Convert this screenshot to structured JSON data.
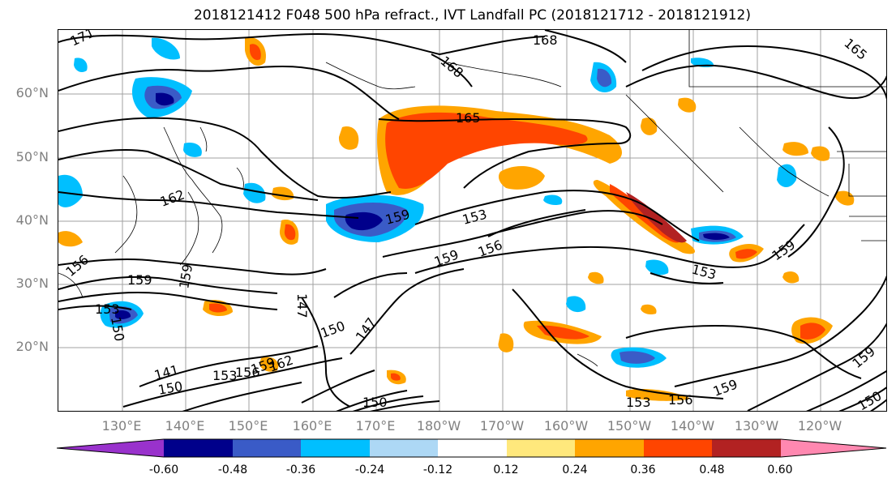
{
  "title": "2018121412 F048 500 hPa refract., IVT Landfall PC (2018121712 - 2018121912)",
  "lat_labels": [
    "60°N",
    "50°N",
    "40°N",
    "30°N",
    "20°N"
  ],
  "lon_labels": [
    "130°E",
    "140°E",
    "150°E",
    "160°E",
    "170°E",
    "180°W",
    "170°W",
    "160°W",
    "150°W",
    "140°W",
    "130°W",
    "120°W"
  ],
  "colorbar": {
    "colors": [
      "#9932cc",
      "#00008b",
      "#3a5bc7",
      "#00bfff",
      "#add8f5",
      "#ffffff",
      "#ffe87c",
      "#ffa500",
      "#ff4500",
      "#b22222",
      "#ff88b0"
    ],
    "tick_labels": [
      "-0.60",
      "-0.48",
      "-0.36",
      "-0.24",
      "-0.12",
      "0.12",
      "0.24",
      "0.36",
      "0.48",
      "0.60"
    ]
  },
  "contour_labels": [
    "171",
    "168",
    "168",
    "165",
    "162",
    "159",
    "159",
    "159",
    "153",
    "159",
    "156",
    "153",
    "159",
    "156",
    "153",
    "150",
    "147",
    "147",
    "150",
    "141",
    "150",
    "153",
    "156",
    "159",
    "162",
    "150",
    "153",
    "156",
    "159",
    "159",
    "150",
    "165"
  ]
}
